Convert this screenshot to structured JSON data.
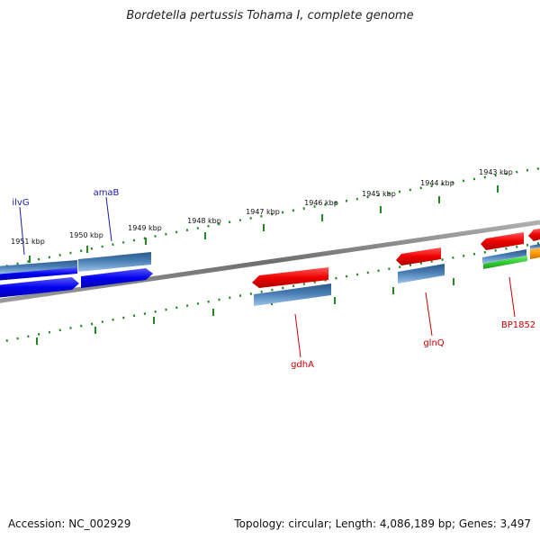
{
  "title": "Bordetella pertussis Tohama I, complete genome",
  "footer": {
    "accession_text": "Accession: NC_002929",
    "info_text": "Topology: circular; Length: 4,086,189 bp; Genes: 3,497"
  },
  "tick_labels": [
    "1951 kbp",
    "1950 kbp",
    "1949 kbp",
    "1948 kbp",
    "1947 kbp",
    "1946 kbp",
    "1945 kbp",
    "1944 kbp",
    "1943 kbp"
  ],
  "gene_labels": [
    "ilvG",
    "amaB",
    "gdhA",
    "glnQ",
    "BP1852"
  ],
  "colors": {
    "forward_strand_label": "#1a1aa8",
    "reverse_strand_label": "#cc0000",
    "cds_forward": "#0000ee",
    "cds_reverse": "#ee0000",
    "gene_box": "#4a7fb5",
    "rna": "#33cc33",
    "other": "#ff9900",
    "tick_marks": "#228822",
    "backbone": "#7a7a7a"
  }
}
